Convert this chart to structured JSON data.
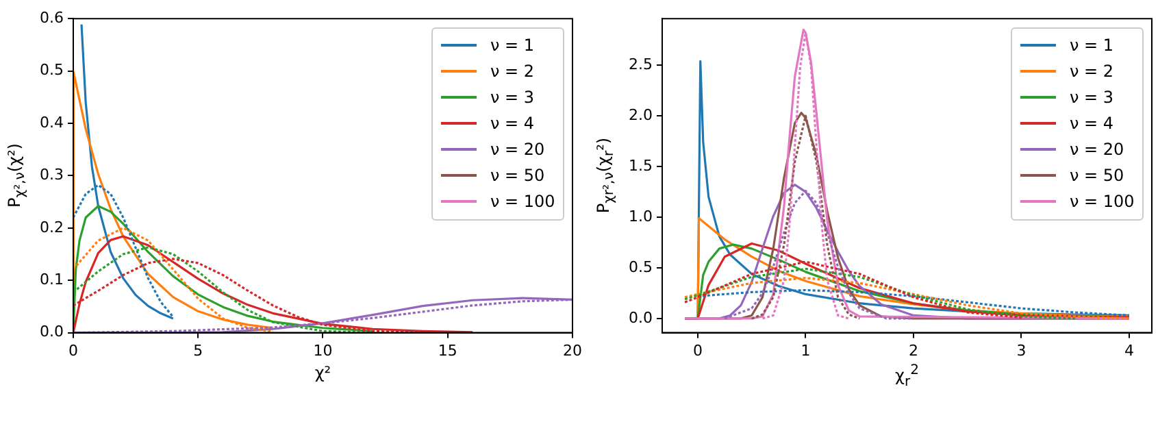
{
  "chart_data": [
    {
      "type": "line",
      "xlabel": "χ²",
      "ylabel": "P$_{χ²,ν}$(χ²)",
      "xlim": [
        0,
        20
      ],
      "ylim": [
        0,
        0.6
      ],
      "xticks": [
        0,
        5,
        10,
        15,
        20
      ],
      "yticks": [
        {
          "value": 0,
          "label": "0.0"
        },
        {
          "value": 0.1,
          "label": "0.1"
        },
        {
          "value": 0.2,
          "label": "0.2"
        },
        {
          "value": 0.3,
          "label": "0.3"
        },
        {
          "value": 0.4,
          "label": "0.4"
        },
        {
          "value": 0.5,
          "label": "0.5"
        },
        {
          "value": 0.6,
          "label": "0.6"
        }
      ],
      "legend": "top right",
      "series": [
        {
          "name": "ν = 1",
          "color": "#1f77b4",
          "x": [
            0.33,
            0.5,
            0.75,
            1,
            1.5,
            2,
            2.5,
            3,
            3.5,
            4
          ],
          "values": [
            0.589,
            0.439,
            0.317,
            0.242,
            0.154,
            0.104,
            0.072,
            0.051,
            0.037,
            0.027
          ]
        },
        {
          "name": "ν = 2",
          "color": "#ff7f0e",
          "x": [
            0,
            0.01,
            0.5,
            1,
            1.5,
            2,
            3,
            4,
            5,
            6,
            7,
            8
          ],
          "values": [
            0,
            0.498,
            0.389,
            0.303,
            0.236,
            0.184,
            0.112,
            0.068,
            0.041,
            0.025,
            0.015,
            0.009
          ]
        },
        {
          "name": "ν = 3",
          "color": "#2ca02c",
          "x": [
            0,
            0.1,
            0.25,
            0.5,
            1,
            1.5,
            2,
            3,
            4,
            5,
            6,
            7,
            8,
            10,
            12
          ],
          "values": [
            0,
            0.12,
            0.176,
            0.22,
            0.242,
            0.231,
            0.208,
            0.154,
            0.108,
            0.073,
            0.049,
            0.032,
            0.021,
            0.009,
            0.003
          ]
        },
        {
          "name": "ν = 4",
          "color": "#d62728",
          "x": [
            0,
            0.25,
            0.5,
            1,
            1.5,
            2,
            3,
            4,
            5,
            6,
            7,
            8,
            10,
            12,
            14,
            16
          ],
          "values": [
            0,
            0.055,
            0.097,
            0.152,
            0.177,
            0.184,
            0.167,
            0.135,
            0.103,
            0.075,
            0.053,
            0.037,
            0.017,
            0.007,
            0.003,
            0.001
          ]
        },
        {
          "name": "ν = 20",
          "color": "#9467bd",
          "x": [
            0,
            2,
            4,
            6,
            8,
            10,
            12,
            14,
            16,
            18,
            20
          ],
          "values": [
            0,
            0,
            0,
            0.001,
            0.007,
            0.018,
            0.034,
            0.051,
            0.062,
            0.066,
            0.063
          ]
        },
        {
          "name": "ν = 50",
          "color": "#8c564b"
        },
        {
          "name": "ν = 100",
          "color": "#e377c2"
        },
        {
          "color": "#1f77b4",
          "line_style": "dotted",
          "x": [
            0,
            0.5,
            1,
            1.5,
            2,
            2.5,
            3,
            3.5,
            4
          ],
          "values": [
            0.22,
            0.265,
            0.282,
            0.265,
            0.22,
            0.162,
            0.104,
            0.059,
            0.03
          ]
        },
        {
          "color": "#ff7f0e",
          "line_style": "dotted",
          "x": [
            0,
            1,
            2,
            3,
            4,
            5,
            6,
            7,
            8
          ],
          "values": [
            0.121,
            0.176,
            0.2,
            0.176,
            0.121,
            0.065,
            0.027,
            0.009,
            0.002
          ]
        },
        {
          "color": "#2ca02c",
          "line_style": "dotted",
          "x": [
            0,
            1,
            2,
            3,
            4,
            5,
            6,
            7,
            8,
            10,
            12
          ],
          "values": [
            0.077,
            0.117,
            0.15,
            0.163,
            0.15,
            0.117,
            0.077,
            0.043,
            0.02,
            0.003,
            0
          ]
        },
        {
          "color": "#d62728",
          "line_style": "dotted",
          "x": [
            0,
            1,
            2,
            3,
            4,
            5,
            6,
            7,
            8,
            9,
            10,
            12,
            14,
            16
          ],
          "values": [
            0.052,
            0.08,
            0.11,
            0.133,
            0.141,
            0.133,
            0.11,
            0.08,
            0.052,
            0.03,
            0.015,
            0.003,
            0,
            0
          ]
        },
        {
          "color": "#9467bd",
          "line_style": "dotted",
          "x": [
            0,
            4,
            8,
            10,
            12,
            14,
            16,
            18,
            20
          ],
          "values": [
            0,
            0.003,
            0.01,
            0.018,
            0.028,
            0.04,
            0.052,
            0.06,
            0.063
          ]
        }
      ]
    },
    {
      "type": "line",
      "xlabel": "χ$_{r}$$^{2}$",
      "ylabel": "P$_{χr²,ν}$(χ$_{r}$²)",
      "xlim": [
        -0.33,
        4.21
      ],
      "ylim": [
        -0.14,
        2.96
      ],
      "xticks": [
        0,
        1,
        2,
        3,
        4
      ],
      "yticks": [
        {
          "value": 0,
          "label": "0.0"
        },
        {
          "value": 0.5,
          "label": "0.5"
        },
        {
          "value": 1,
          "label": "1.0"
        },
        {
          "value": 1.5,
          "label": "1.5"
        },
        {
          "value": 2,
          "label": "2.0"
        },
        {
          "value": 2.5,
          "label": "2.5"
        }
      ],
      "legend": "top right",
      "series": [
        {
          "name": "ν = 1",
          "color": "#1f77b4",
          "x": [
            -0.12,
            0,
            0.024,
            0.05,
            0.1,
            0.2,
            0.3,
            0.5,
            0.75,
            1,
            1.5,
            2,
            2.5,
            3,
            3.5,
            4
          ],
          "values": [
            0,
            0,
            2.54,
            1.74,
            1.2,
            0.81,
            0.63,
            0.44,
            0.32,
            0.24,
            0.15,
            0.1,
            0.07,
            0.05,
            0.04,
            0.03
          ]
        },
        {
          "name": "ν = 2",
          "color": "#ff7f0e",
          "x": [
            -0.12,
            0,
            0.01,
            0.25,
            0.5,
            0.75,
            1,
            1.5,
            2,
            2.5,
            3,
            3.5,
            4
          ],
          "values": [
            0,
            0,
            0.99,
            0.78,
            0.61,
            0.47,
            0.37,
            0.22,
            0.14,
            0.08,
            0.05,
            0.03,
            0.02
          ]
        },
        {
          "name": "ν = 3",
          "color": "#2ca02c",
          "x": [
            -0.12,
            0,
            0.05,
            0.1,
            0.2,
            0.33,
            0.5,
            0.75,
            1,
            1.5,
            2,
            2.5,
            3,
            4
          ],
          "values": [
            0,
            0,
            0.43,
            0.56,
            0.69,
            0.73,
            0.69,
            0.58,
            0.46,
            0.27,
            0.15,
            0.08,
            0.04,
            0.01
          ]
        },
        {
          "name": "ν = 4",
          "color": "#d62728",
          "x": [
            -0.12,
            0,
            0.1,
            0.25,
            0.5,
            0.75,
            1,
            1.5,
            2,
            2.5,
            3,
            4
          ],
          "values": [
            0,
            0,
            0.33,
            0.61,
            0.74,
            0.67,
            0.54,
            0.3,
            0.15,
            0.07,
            0.03,
            0.01
          ]
        },
        {
          "name": "ν = 20",
          "color": "#9467bd",
          "x": [
            -0.12,
            0.2,
            0.3,
            0.4,
            0.5,
            0.6,
            0.7,
            0.8,
            0.9,
            1,
            1.1,
            1.2,
            1.3,
            1.4,
            1.5,
            1.7,
            2,
            2.5,
            4
          ],
          "values": [
            0,
            0,
            0.03,
            0.13,
            0.36,
            0.69,
            1.01,
            1.24,
            1.32,
            1.25,
            1.09,
            0.87,
            0.66,
            0.47,
            0.32,
            0.14,
            0.03,
            0,
            0
          ]
        },
        {
          "name": "ν = 50",
          "color": "#8c564b",
          "x": [
            -0.12,
            0.4,
            0.5,
            0.6,
            0.7,
            0.8,
            0.9,
            0.96,
            1,
            1.1,
            1.2,
            1.3,
            1.4,
            1.5,
            1.7,
            2,
            4
          ],
          "values": [
            0,
            0,
            0.03,
            0.21,
            0.69,
            1.39,
            1.93,
            2.03,
            1.98,
            1.61,
            1.06,
            0.6,
            0.29,
            0.13,
            0.02,
            0,
            0
          ]
        },
        {
          "name": "ν = 100",
          "color": "#e377c2",
          "x": [
            -0.12,
            0.5,
            0.6,
            0.7,
            0.8,
            0.85,
            0.9,
            0.98,
            1,
            1.05,
            1.1,
            1.2,
            1.3,
            1.4,
            1.5,
            4
          ],
          "values": [
            0,
            0,
            0.02,
            0.24,
            1.11,
            1.78,
            2.39,
            2.85,
            2.82,
            2.53,
            2.03,
            0.97,
            0.33,
            0.08,
            0.02,
            0
          ]
        },
        {
          "color": "#1f77b4",
          "line_style": "dotted",
          "x": [
            0,
            0.5,
            1,
            1.5,
            2,
            2.5,
            3,
            3.5,
            4
          ],
          "values": [
            0.22,
            0.26,
            0.28,
            0.26,
            0.22,
            0.16,
            0.1,
            0.06,
            0.03
          ]
        },
        {
          "color": "#ff7f0e",
          "line_style": "dotted",
          "x": [
            -0.12,
            0,
            0.5,
            1,
            1.5,
            2,
            2.5,
            3,
            3.5,
            4
          ],
          "values": [
            0.21,
            0.24,
            0.35,
            0.4,
            0.35,
            0.24,
            0.13,
            0.05,
            0.02,
            0
          ]
        },
        {
          "color": "#2ca02c",
          "line_style": "dotted",
          "x": [
            -0.12,
            0,
            0.5,
            1,
            1.5,
            2,
            2.5,
            3,
            3.5
          ],
          "values": [
            0.19,
            0.23,
            0.41,
            0.49,
            0.41,
            0.23,
            0.09,
            0.02,
            0
          ]
        },
        {
          "color": "#d62728",
          "line_style": "dotted",
          "x": [
            -0.12,
            0,
            0.5,
            1,
            1.5,
            2,
            2.5,
            3
          ],
          "values": [
            0.16,
            0.21,
            0.44,
            0.56,
            0.44,
            0.21,
            0.06,
            0.01
          ]
        },
        {
          "color": "#9467bd",
          "line_style": "dotted",
          "x": [
            0.25,
            0.5,
            0.6,
            0.7,
            0.8,
            0.9,
            1,
            1.1,
            1.2,
            1.3,
            1.4,
            1.5,
            1.75,
            2
          ],
          "values": [
            0,
            0.1,
            0.25,
            0.51,
            0.85,
            1.14,
            1.26,
            1.14,
            0.85,
            0.51,
            0.25,
            0.1,
            0,
            0
          ]
        },
        {
          "color": "#8c564b",
          "line_style": "dotted",
          "x": [
            0.5,
            0.6,
            0.7,
            0.8,
            0.9,
            1,
            1.1,
            1.2,
            1.3,
            1.4,
            1.5
          ],
          "values": [
            0,
            0.04,
            0.21,
            0.73,
            1.55,
            2,
            1.55,
            0.73,
            0.21,
            0.04,
            0
          ]
        },
        {
          "color": "#e377c2",
          "line_style": "dotted",
          "x": [
            0.6,
            0.7,
            0.8,
            0.85,
            0.9,
            0.95,
            1,
            1.05,
            1.1,
            1.15,
            1.2,
            1.3,
            1.4
          ],
          "values": [
            0,
            0.03,
            0.38,
            0.92,
            1.71,
            2.49,
            2.82,
            2.49,
            1.71,
            0.92,
            0.38,
            0.03,
            0
          ]
        }
      ]
    }
  ]
}
